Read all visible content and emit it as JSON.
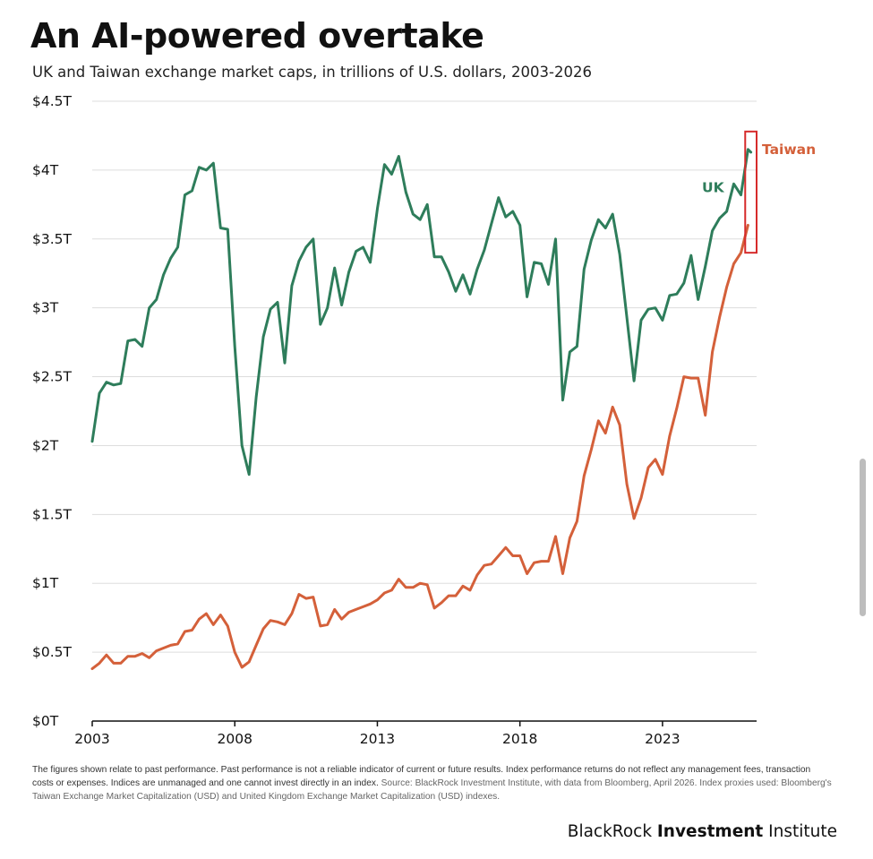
{
  "title": "An AI-powered overtake",
  "subtitle": "UK and Taiwan exchange market caps, in trillions of U.S. dollars, 2003-2026",
  "footnote": {
    "main": "The figures shown relate to past performance. Past performance is not a reliable indicator of current or future results. Index performance returns do not reflect any management fees, transaction costs or expenses. Indices are unmanaged and one cannot invest directly in an index.",
    "source": "Source: BlackRock Investment Institute, with data from Bloomberg, April 2026. Index proxies used: Bloomberg's Taiwan Exchange Market Capitalization (USD) and United Kingdom Exchange Market Capitalization (USD) indexes."
  },
  "brand": {
    "regular_left": "BlackRock ",
    "bold": "Investment",
    "regular_right": " Institute"
  },
  "colors": {
    "uk": "#2e7d5b",
    "taiwan": "#d4603a",
    "highlight_box": "#d62b2b",
    "grid": "#dddddd",
    "axis": "#111111"
  },
  "chart_data": {
    "type": "line",
    "title": "An AI-powered overtake",
    "subtitle": "UK and Taiwan exchange market caps, in trillions of U.S. dollars, 2003-2026",
    "ylim": [
      0,
      4.5
    ],
    "xlim": [
      2003,
      2026.3
    ],
    "y_ticks": [
      {
        "value": 0,
        "label": "$0T"
      },
      {
        "value": 0.5,
        "label": "$0.5T"
      },
      {
        "value": 1,
        "label": "$1T"
      },
      {
        "value": 1.5,
        "label": "$1.5T"
      },
      {
        "value": 2,
        "label": "$2T"
      },
      {
        "value": 2.5,
        "label": "$2.5T"
      },
      {
        "value": 3,
        "label": "$3T"
      },
      {
        "value": 3.5,
        "label": "$3.5T"
      },
      {
        "value": 4,
        "label": "$4T"
      },
      {
        "value": 4.5,
        "label": "$4.5T"
      }
    ],
    "x_ticks": [
      {
        "value": 2003,
        "label": "2003"
      },
      {
        "value": 2008,
        "label": "2008"
      },
      {
        "value": 2013,
        "label": "2013"
      },
      {
        "value": 2018,
        "label": "2018"
      },
      {
        "value": 2023,
        "label": "2023"
      }
    ],
    "grid": true,
    "highlight": {
      "x_from": 2025.9,
      "x_to": 2026.3,
      "y_from": 3.4,
      "y_to": 4.28
    },
    "series": [
      {
        "name": "UK",
        "label_position": "left-of-end",
        "x": [
          2003.0,
          2003.25,
          2003.5,
          2003.75,
          2004.0,
          2004.25,
          2004.5,
          2004.75,
          2005.0,
          2005.25,
          2005.5,
          2005.75,
          2006.0,
          2006.25,
          2006.5,
          2006.75,
          2007.0,
          2007.25,
          2007.5,
          2007.75,
          2008.0,
          2008.25,
          2008.5,
          2008.75,
          2009.0,
          2009.25,
          2009.5,
          2009.75,
          2010.0,
          2010.25,
          2010.5,
          2010.75,
          2011.0,
          2011.25,
          2011.5,
          2011.75,
          2012.0,
          2012.25,
          2012.5,
          2012.75,
          2013.0,
          2013.25,
          2013.5,
          2013.75,
          2014.0,
          2014.25,
          2014.5,
          2014.75,
          2015.0,
          2015.25,
          2015.5,
          2015.75,
          2016.0,
          2016.25,
          2016.5,
          2016.75,
          2017.0,
          2017.25,
          2017.5,
          2017.75,
          2018.0,
          2018.25,
          2018.5,
          2018.75,
          2019.0,
          2019.25,
          2019.5,
          2019.75,
          2020.0,
          2020.25,
          2020.5,
          2020.75,
          2021.0,
          2021.25,
          2021.5,
          2021.75,
          2022.0,
          2022.25,
          2022.5,
          2022.75,
          2023.0,
          2023.25,
          2023.5,
          2023.75,
          2024.0,
          2024.25,
          2024.5,
          2024.75,
          2025.0,
          2025.25,
          2025.5,
          2025.75,
          2026.0,
          2026.1
        ],
        "values": [
          2.03,
          2.38,
          2.46,
          2.44,
          2.45,
          2.76,
          2.77,
          2.72,
          3.0,
          3.06,
          3.24,
          3.36,
          3.44,
          3.82,
          3.85,
          4.02,
          4.0,
          4.05,
          3.58,
          3.57,
          2.72,
          2.0,
          1.79,
          2.35,
          2.79,
          2.99,
          3.04,
          2.6,
          3.16,
          3.34,
          3.44,
          3.5,
          2.88,
          3.0,
          3.29,
          3.02,
          3.26,
          3.41,
          3.44,
          3.33,
          3.72,
          4.04,
          3.97,
          4.1,
          3.84,
          3.68,
          3.64,
          3.75,
          3.37,
          3.37,
          3.26,
          3.12,
          3.24,
          3.1,
          3.28,
          3.42,
          3.61,
          3.8,
          3.66,
          3.7,
          3.6,
          3.08,
          3.33,
          3.32,
          3.17,
          3.5,
          2.33,
          2.68,
          2.72,
          3.28,
          3.49,
          3.64,
          3.58,
          3.68,
          3.39,
          2.93,
          2.47,
          2.91,
          2.99,
          3.0,
          2.91,
          3.09,
          3.1,
          3.18,
          3.38,
          3.06,
          3.3,
          3.56,
          3.65,
          3.7,
          3.9,
          3.82,
          4.15,
          4.13
        ]
      },
      {
        "name": "Taiwan",
        "label_position": "right-of-end",
        "x": [
          2003.0,
          2003.25,
          2003.5,
          2003.75,
          2004.0,
          2004.25,
          2004.5,
          2004.75,
          2005.0,
          2005.25,
          2005.5,
          2005.75,
          2006.0,
          2006.25,
          2006.5,
          2006.75,
          2007.0,
          2007.25,
          2007.5,
          2007.75,
          2008.0,
          2008.25,
          2008.5,
          2008.75,
          2009.0,
          2009.25,
          2009.5,
          2009.75,
          2010.0,
          2010.25,
          2010.5,
          2010.75,
          2011.0,
          2011.25,
          2011.5,
          2011.75,
          2012.0,
          2012.25,
          2012.5,
          2012.75,
          2013.0,
          2013.25,
          2013.5,
          2013.75,
          2014.0,
          2014.25,
          2014.5,
          2014.75,
          2015.0,
          2015.25,
          2015.5,
          2015.75,
          2016.0,
          2016.25,
          2016.5,
          2016.75,
          2017.0,
          2017.25,
          2017.5,
          2017.75,
          2018.0,
          2018.25,
          2018.5,
          2018.75,
          2019.0,
          2019.25,
          2019.5,
          2019.75,
          2020.0,
          2020.25,
          2020.5,
          2020.75,
          2021.0,
          2021.25,
          2021.5,
          2021.75,
          2022.0,
          2022.25,
          2022.5,
          2022.75,
          2023.0,
          2023.25,
          2023.5,
          2023.75,
          2024.0,
          2024.25,
          2024.5,
          2024.75,
          2025.0,
          2025.25,
          2025.5,
          2025.75,
          2026.0
        ],
        "values": [
          0.38,
          0.42,
          0.48,
          0.42,
          0.42,
          0.47,
          0.47,
          0.49,
          0.46,
          0.51,
          0.53,
          0.55,
          0.56,
          0.65,
          0.66,
          0.74,
          0.78,
          0.7,
          0.77,
          0.69,
          0.5,
          0.39,
          0.43,
          0.55,
          0.67,
          0.73,
          0.72,
          0.7,
          0.78,
          0.92,
          0.89,
          0.9,
          0.69,
          0.7,
          0.81,
          0.74,
          0.79,
          0.81,
          0.83,
          0.85,
          0.88,
          0.93,
          0.95,
          1.03,
          0.97,
          0.97,
          1.0,
          0.99,
          0.82,
          0.86,
          0.91,
          0.91,
          0.98,
          0.95,
          1.06,
          1.13,
          1.14,
          1.2,
          1.26,
          1.2,
          1.2,
          1.07,
          1.15,
          1.16,
          1.16,
          1.34,
          1.07,
          1.33,
          1.45,
          1.78,
          1.97,
          2.18,
          2.09,
          2.28,
          2.15,
          1.72,
          1.47,
          1.62,
          1.84,
          1.9,
          1.79,
          2.07,
          2.27,
          2.5,
          2.49,
          2.49,
          2.22,
          2.68,
          2.93,
          3.15,
          3.32,
          3.4,
          3.6
        ]
      }
    ]
  }
}
